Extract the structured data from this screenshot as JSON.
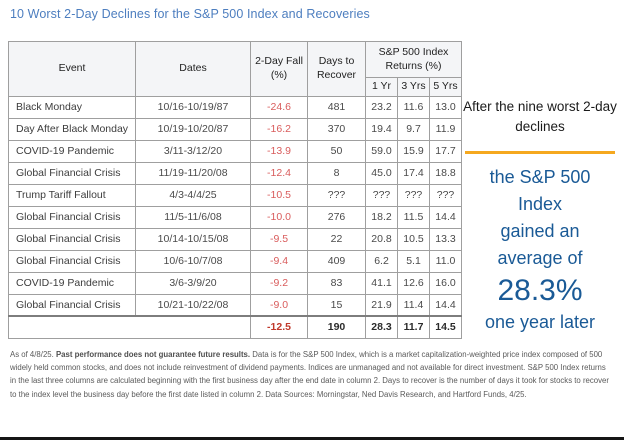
{
  "title": "10 Worst 2-Day Declines for the S&P 500 Index and Recoveries",
  "chart_data": {
    "type": "table",
    "title": "10 Worst 2-Day Declines for the S&P 500 Index and Recoveries",
    "column_group_header": "S&P 500 Index Returns (%)",
    "columns": [
      "Event",
      "Dates",
      "2-Day Fall (%)",
      "Days to Recover",
      "1 Yr",
      "3 Yrs",
      "5 Yrs"
    ],
    "rows": [
      [
        "Black Monday",
        "10/16-10/19/87",
        "-24.6",
        "481",
        "23.2",
        "11.6",
        "13.0"
      ],
      [
        "Day After Black Monday",
        "10/19-10/20/87",
        "-16.2",
        "370",
        "19.4",
        "9.7",
        "11.9"
      ],
      [
        "COVID-19 Pandemic",
        "3/11-3/12/20",
        "-13.9",
        "50",
        "59.0",
        "15.9",
        "17.7"
      ],
      [
        "Global Financial Crisis",
        "11/19-11/20/08",
        "-12.4",
        "8",
        "45.0",
        "17.4",
        "18.8"
      ],
      [
        "Trump Tariff Fallout",
        "4/3-4/4/25",
        "-10.5",
        "???",
        "???",
        "???",
        "???"
      ],
      [
        "Global Financial Crisis",
        "11/5-11/6/08",
        "-10.0",
        "276",
        "18.2",
        "11.5",
        "14.4"
      ],
      [
        "Global Financial Crisis",
        "10/14-10/15/08",
        "-9.5",
        "22",
        "20.8",
        "10.5",
        "13.3"
      ],
      [
        "Global Financial Crisis",
        "10/6-10/7/08",
        "-9.4",
        "409",
        "6.2",
        "5.1",
        "11.0"
      ],
      [
        "COVID-19 Pandemic",
        "3/6-3/9/20",
        "-9.2",
        "83",
        "41.1",
        "12.6",
        "16.0"
      ],
      [
        "Global Financial Crisis",
        "10/21-10/22/08",
        "-9.0",
        "15",
        "21.9",
        "11.4",
        "14.4"
      ]
    ],
    "average_row": [
      "",
      "",
      "-12.5",
      "190",
      "28.3",
      "11.7",
      "14.5"
    ]
  },
  "callout": {
    "intro": "After the nine worst 2-day declines",
    "main_lines": [
      "the S&P 500",
      "Index",
      "gained an",
      "average of"
    ],
    "highlight": "28.3%",
    "outro": "one year later"
  },
  "footnote": {
    "as_of": "As of 4/8/25. ",
    "bold": "Past performance does not guarantee future results.",
    "rest": " Data is for the S&P 500 Index, which is a market capitalization-weighted price index composed of 500 widely held common stocks, and does not include reinvestment of dividend payments. Indices are unmanaged and not available for direct investment. S&P 500 Index returns in the last three columns are calculated beginning with the first business day after the end date in column 2. Days to recover is the number of days it took for stocks to recover to the index level the business day before the first date listed in column 2. Data Sources: Morningstar, Ned Davis Research, and Hartford Funds, 4/25."
  },
  "colors": {
    "title_blue": "#4d7ebf",
    "callout_blue": "#1a5a96",
    "divider_orange": "#f5a81f",
    "decline_red": "#d95c5c",
    "average_red": "#c0392b",
    "header_bg": "#f4f5f7",
    "border_gray": "#9f9f9f"
  }
}
